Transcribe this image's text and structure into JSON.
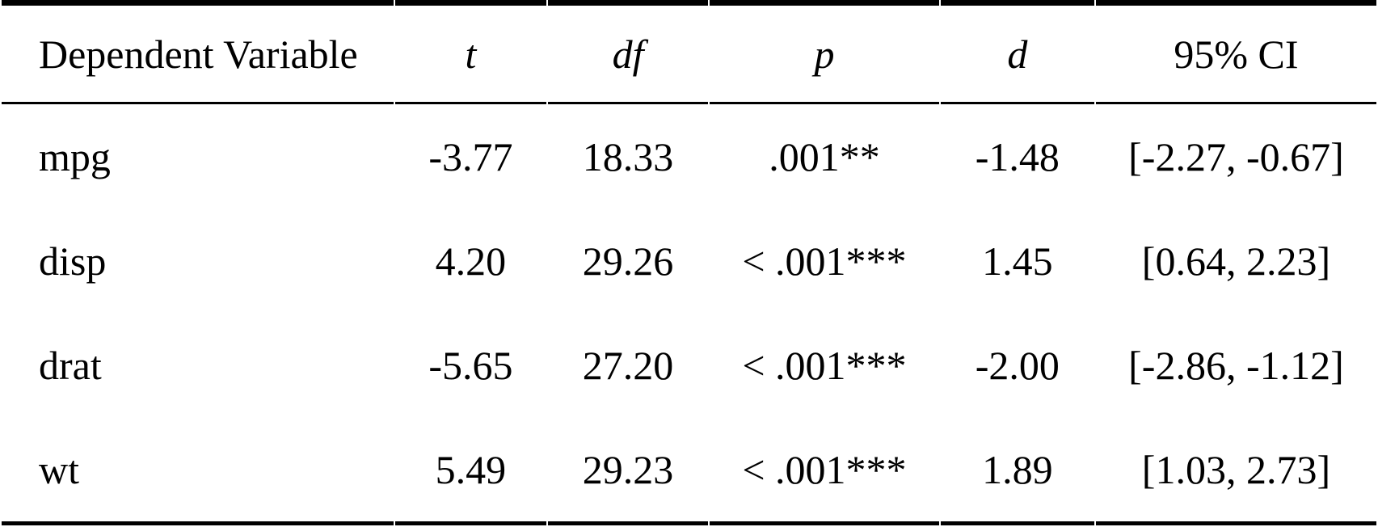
{
  "colors": {
    "background": "#ffffff",
    "text": "#000000",
    "rule": "#000000"
  },
  "table": {
    "columns": [
      {
        "key": "dv",
        "label": "Dependent Variable",
        "italic": false
      },
      {
        "key": "t",
        "label": "t",
        "italic": true
      },
      {
        "key": "df",
        "label": "df",
        "italic": true
      },
      {
        "key": "p",
        "label": "p",
        "italic": true
      },
      {
        "key": "d",
        "label": "d",
        "italic": true
      },
      {
        "key": "ci",
        "label": "95% CI",
        "italic": false
      }
    ],
    "rows": [
      {
        "dv": "mpg",
        "t": "-3.77",
        "df": "18.33",
        "p": ".001**",
        "d": "-1.48",
        "ci": "[-2.27, -0.67]"
      },
      {
        "dv": "disp",
        "t": "4.20",
        "df": "29.26",
        "p": "< .001***",
        "d": "1.45",
        "ci": "[0.64, 2.23]"
      },
      {
        "dv": "drat",
        "t": "-5.65",
        "df": "27.20",
        "p": "< .001***",
        "d": "-2.00",
        "ci": "[-2.86, -1.12]"
      },
      {
        "dv": "wt",
        "t": "5.49",
        "df": "29.23",
        "p": "< .001***",
        "d": "1.89",
        "ci": "[1.03, 2.73]"
      }
    ]
  },
  "chart_data": {
    "type": "table",
    "title": "",
    "columns": [
      "Dependent Variable",
      "t",
      "df",
      "p",
      "d",
      "95% CI"
    ],
    "rows": [
      [
        "mpg",
        -3.77,
        18.33,
        ".001**",
        -1.48,
        "[-2.27, -0.67]"
      ],
      [
        "disp",
        4.2,
        29.26,
        "< .001***",
        1.45,
        "[0.64, 2.23]"
      ],
      [
        "drat",
        -5.65,
        27.2,
        "< .001***",
        -2.0,
        "[-2.86, -1.12]"
      ],
      [
        "wt",
        5.49,
        29.23,
        "< .001***",
        1.89,
        "[1.03, 2.73]"
      ]
    ]
  }
}
